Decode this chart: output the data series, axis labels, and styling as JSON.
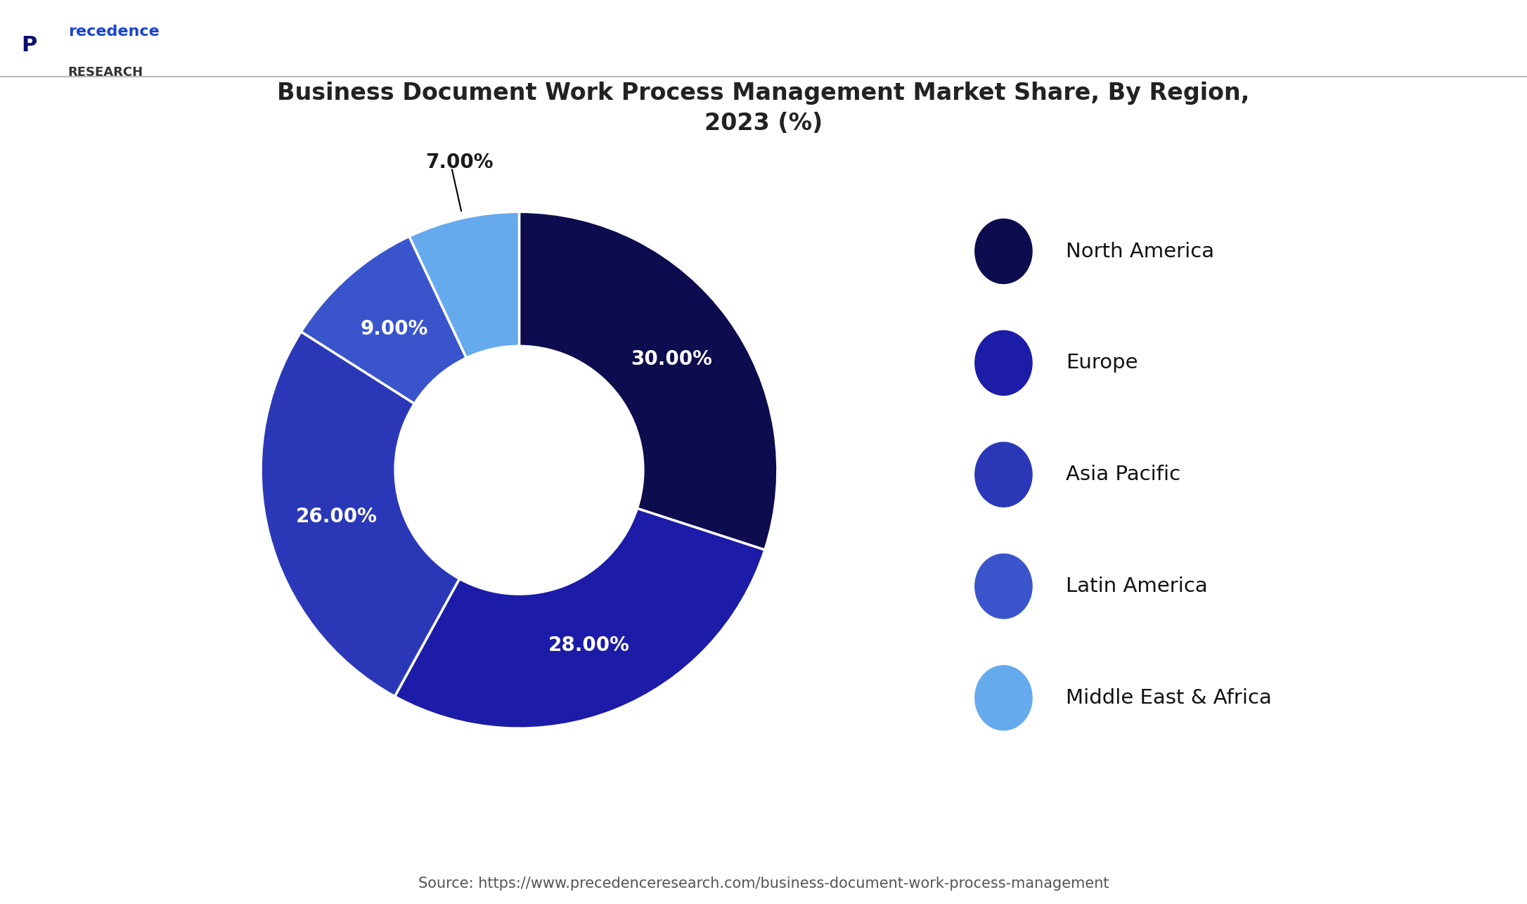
{
  "title": "Business Document Work Process Management Market Share, By Region,\n2023 (%)",
  "labels": [
    "North America",
    "Europe",
    "Asia Pacific",
    "Latin America",
    "Middle East & Africa"
  ],
  "values": [
    30.0,
    28.0,
    26.0,
    9.0,
    7.0
  ],
  "colors": [
    "#0c0c4e",
    "#1c1ca8",
    "#2a38b8",
    "#3a55cc",
    "#66aaee"
  ],
  "pct_labels": [
    "30.00%",
    "28.00%",
    "26.00%",
    "9.00%",
    "7.00%"
  ],
  "source_text": "Source: https://www.precedenceresearch.com/business-document-work-process-management",
  "background_color": "#ffffff",
  "text_color": "#1a1a1a",
  "title_fontsize": 24,
  "legend_fontsize": 21,
  "pct_fontsize": 20,
  "source_fontsize": 15
}
